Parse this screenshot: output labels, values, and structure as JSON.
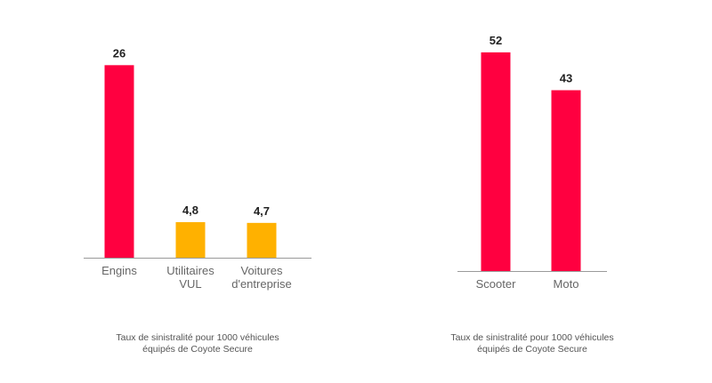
{
  "colors": {
    "primary": "#ff0040",
    "secondary": "#ffb100",
    "axis": "#9a9a9a",
    "value_text": "#222222",
    "tick_text": "#666666"
  },
  "chart_data": [
    {
      "type": "bar",
      "categories": [
        [
          "Engins"
        ],
        [
          "Utilitaires",
          "VUL"
        ],
        [
          "Voitures",
          "d'entreprise"
        ]
      ],
      "values": [
        26,
        4.8,
        4.7
      ],
      "value_labels": [
        "26",
        "4,8",
        "4,7"
      ],
      "bar_colors": [
        "#ff0040",
        "#ffb100",
        "#ffb100"
      ],
      "ylim": [
        0,
        30
      ],
      "grid": false,
      "caption": [
        "Taux de sinistralité pour 1000 véhicules",
        "équipés de Coyote Secure"
      ]
    },
    {
      "type": "bar",
      "categories": [
        [
          "Scooter"
        ],
        [
          "Moto"
        ]
      ],
      "values": [
        52,
        43
      ],
      "value_labels": [
        "52",
        "43"
      ],
      "bar_colors": [
        "#ff0040",
        "#ff0040"
      ],
      "ylim": [
        0,
        56
      ],
      "grid": false,
      "caption": [
        "Taux de sinistralité pour 1000 véhicules",
        "équipés de Coyote Secure"
      ]
    }
  ]
}
